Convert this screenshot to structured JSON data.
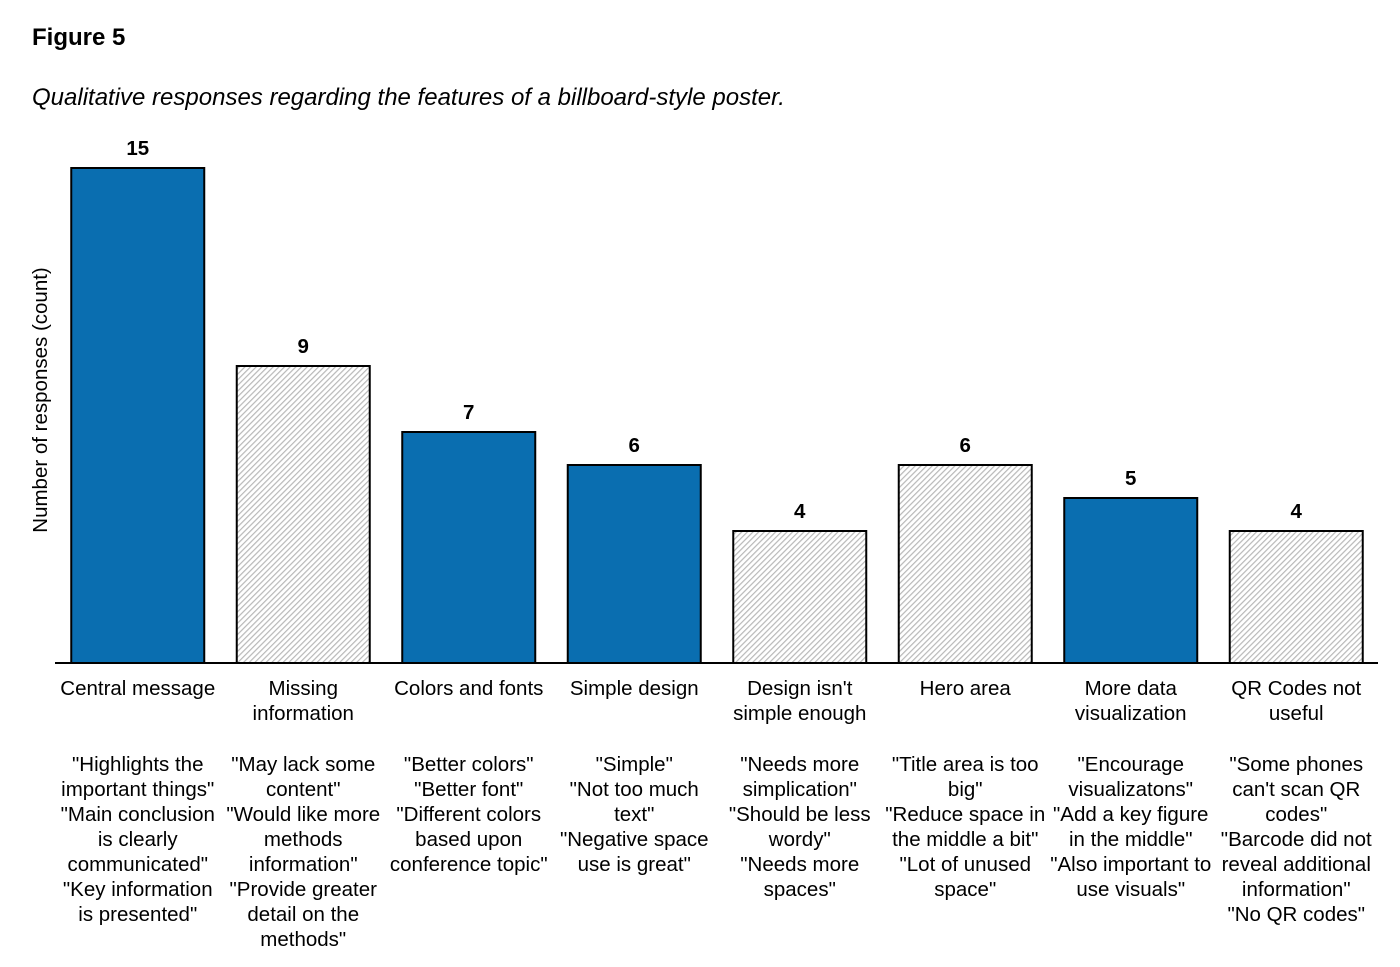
{
  "figure_label": "Figure 5",
  "caption": "Qualitative responses regarding the features of a billboard-style poster.",
  "colors": {
    "positive": "#0a6eb0",
    "negative_pattern": "#b8b8b8",
    "border": "#000000"
  },
  "chart_data": {
    "type": "bar",
    "title": "",
    "xlabel": "",
    "ylabel": "Number of responses (count)",
    "ylim": [
      0,
      15
    ],
    "grid": false,
    "categories": [
      "Central message",
      "Missing information",
      "Colors and fonts",
      "Simple design",
      "Design isn't simple enough",
      "Hero area",
      "More data visualization",
      "QR Codes not useful"
    ],
    "values": [
      15,
      9,
      7,
      6,
      4,
      6,
      5,
      4
    ],
    "fill": [
      "solid",
      "hatched",
      "solid",
      "solid",
      "hatched",
      "hatched",
      "solid",
      "hatched"
    ],
    "quotes": [
      "\"Highlights the important things\"\n\"Main conclusion is clearly communicated\"\n\"Key information is presented\"",
      "\"May lack some content\"\n\"Would like more methods information\"\n\"Provide greater detail on the methods\"",
      "\"Better colors\"\n\"Better font\"\n\"Different colors based upon conference topic\"",
      "\"Simple\"\n\"Not too much text\"\n\"Negative space use is great\"",
      "\"Needs more simplication\"\n\"Should be less wordy\"\n\"Needs more spaces\"",
      "\"Title area is too big\"\n\"Reduce space in the middle a bit\"\n\"Lot of unused space\"",
      "\"Encourage visualizatons\"\n\"Add a key figure in the middle\"\n\"Also important to use visuals\"",
      "\"Some phones can't scan QR codes\"\n\"Barcode did not reveal additional information\"\n\"No QR codes\""
    ]
  }
}
